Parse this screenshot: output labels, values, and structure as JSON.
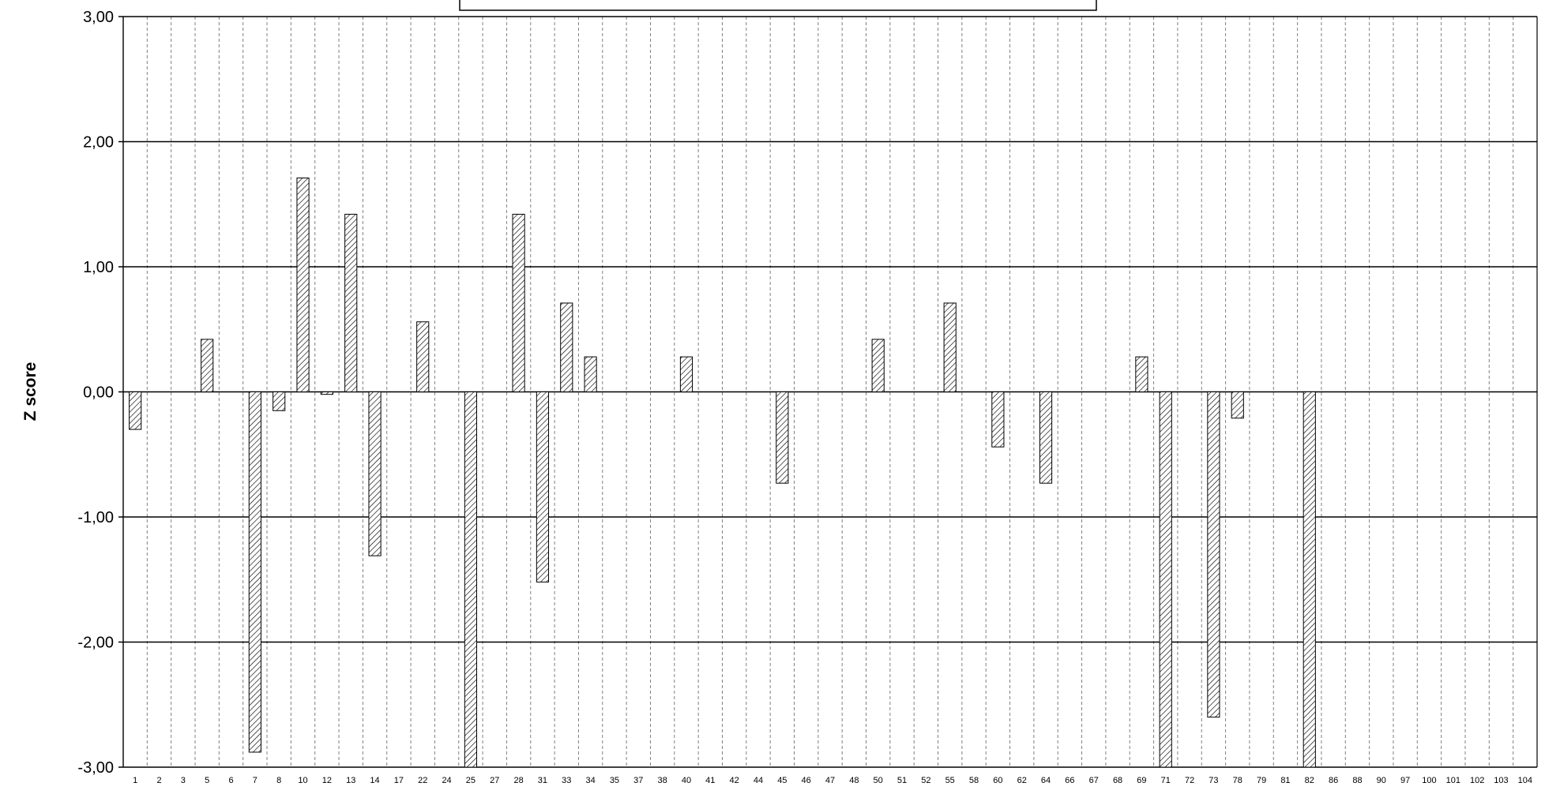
{
  "chart_data": {
    "type": "bar",
    "title": "",
    "xlabel": "",
    "ylabel": "Z score",
    "ylim": [
      -3,
      3
    ],
    "y_ticks": [
      "3,00",
      "2,00",
      "1,00",
      "0,00",
      "-1,00",
      "-2,00",
      "-3,00"
    ],
    "grid": true,
    "legend": "none",
    "categories": [
      "1",
      "2",
      "3",
      "5",
      "6",
      "7",
      "8",
      "10",
      "12",
      "13",
      "14",
      "17",
      "22",
      "24",
      "25",
      "27",
      "28",
      "31",
      "33",
      "34",
      "35",
      "37",
      "38",
      "40",
      "41",
      "42",
      "44",
      "45",
      "46",
      "47",
      "48",
      "50",
      "51",
      "52",
      "55",
      "58",
      "60",
      "62",
      "64",
      "66",
      "67",
      "68",
      "69",
      "71",
      "72",
      "73",
      "78",
      "79",
      "81",
      "82",
      "86",
      "88",
      "90",
      "97",
      "100",
      "101",
      "102",
      "103",
      "104"
    ],
    "values": [
      -0.3,
      0,
      0,
      0.42,
      0,
      -2.88,
      -0.15,
      1.71,
      -0.02,
      1.42,
      -1.31,
      0,
      0.56,
      0,
      -3.0,
      0,
      1.42,
      -1.52,
      0.71,
      0.28,
      0,
      0,
      0,
      0.28,
      0,
      0,
      0,
      -0.73,
      0,
      0,
      0,
      0.42,
      0,
      0,
      0.71,
      0,
      -0.44,
      0,
      -0.73,
      0,
      0,
      0,
      0.28,
      -3.0,
      0,
      -2.6,
      -0.21,
      0,
      0,
      -3.0,
      0,
      0,
      0,
      0,
      0,
      0,
      0,
      0,
      0
    ],
    "colors": {
      "bar_fill": "#ffffff",
      "bar_stroke": "#000000",
      "hatch": "#000000",
      "gridline": "#000000",
      "category_grid": "#808080"
    }
  }
}
